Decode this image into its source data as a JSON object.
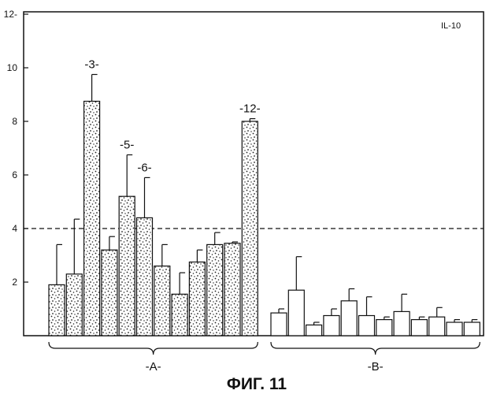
{
  "chart_data": {
    "type": "bar",
    "title": "",
    "panel_label": "IL-10",
    "caption": "ФИГ. 11",
    "xlabel": "",
    "ylabel": "",
    "ylim": [
      0,
      12
    ],
    "yticks": [
      {
        "value": 2,
        "label": "2"
      },
      {
        "value": 4,
        "label": "4"
      },
      {
        "value": 6,
        "label": "6"
      },
      {
        "value": 8,
        "label": "8"
      },
      {
        "value": 10,
        "label": "10"
      },
      {
        "value": 12,
        "label": "12-"
      }
    ],
    "reference_line": {
      "value": 4,
      "style": "dashed"
    },
    "grid": false,
    "legend": "none",
    "groups": [
      {
        "label": "-A-",
        "fill": "stippled",
        "values": [
          1.9,
          2.3,
          8.75,
          3.2,
          5.2,
          4.4,
          2.6,
          1.55,
          2.75,
          3.4,
          3.45,
          8.0
        ],
        "errors": [
          1.5,
          2.05,
          1.0,
          0.5,
          1.55,
          1.5,
          0.8,
          0.8,
          0.45,
          0.45,
          0.05,
          0.1
        ],
        "annotations": [
          {
            "index": 2,
            "text": "-3-"
          },
          {
            "index": 4,
            "text": "-5-"
          },
          {
            "index": 5,
            "text": "-6-"
          },
          {
            "index": 11,
            "text": "-12-"
          }
        ]
      },
      {
        "label": "-B-",
        "fill": "open",
        "values": [
          0.85,
          1.7,
          0.4,
          0.75,
          1.3,
          0.75,
          0.6,
          0.9,
          0.6,
          0.7,
          0.5,
          0.5
        ],
        "errors": [
          0.15,
          1.25,
          0.1,
          0.25,
          0.45,
          0.7,
          0.1,
          0.65,
          0.1,
          0.35,
          0.1,
          0.1
        ],
        "annotations": []
      }
    ]
  }
}
